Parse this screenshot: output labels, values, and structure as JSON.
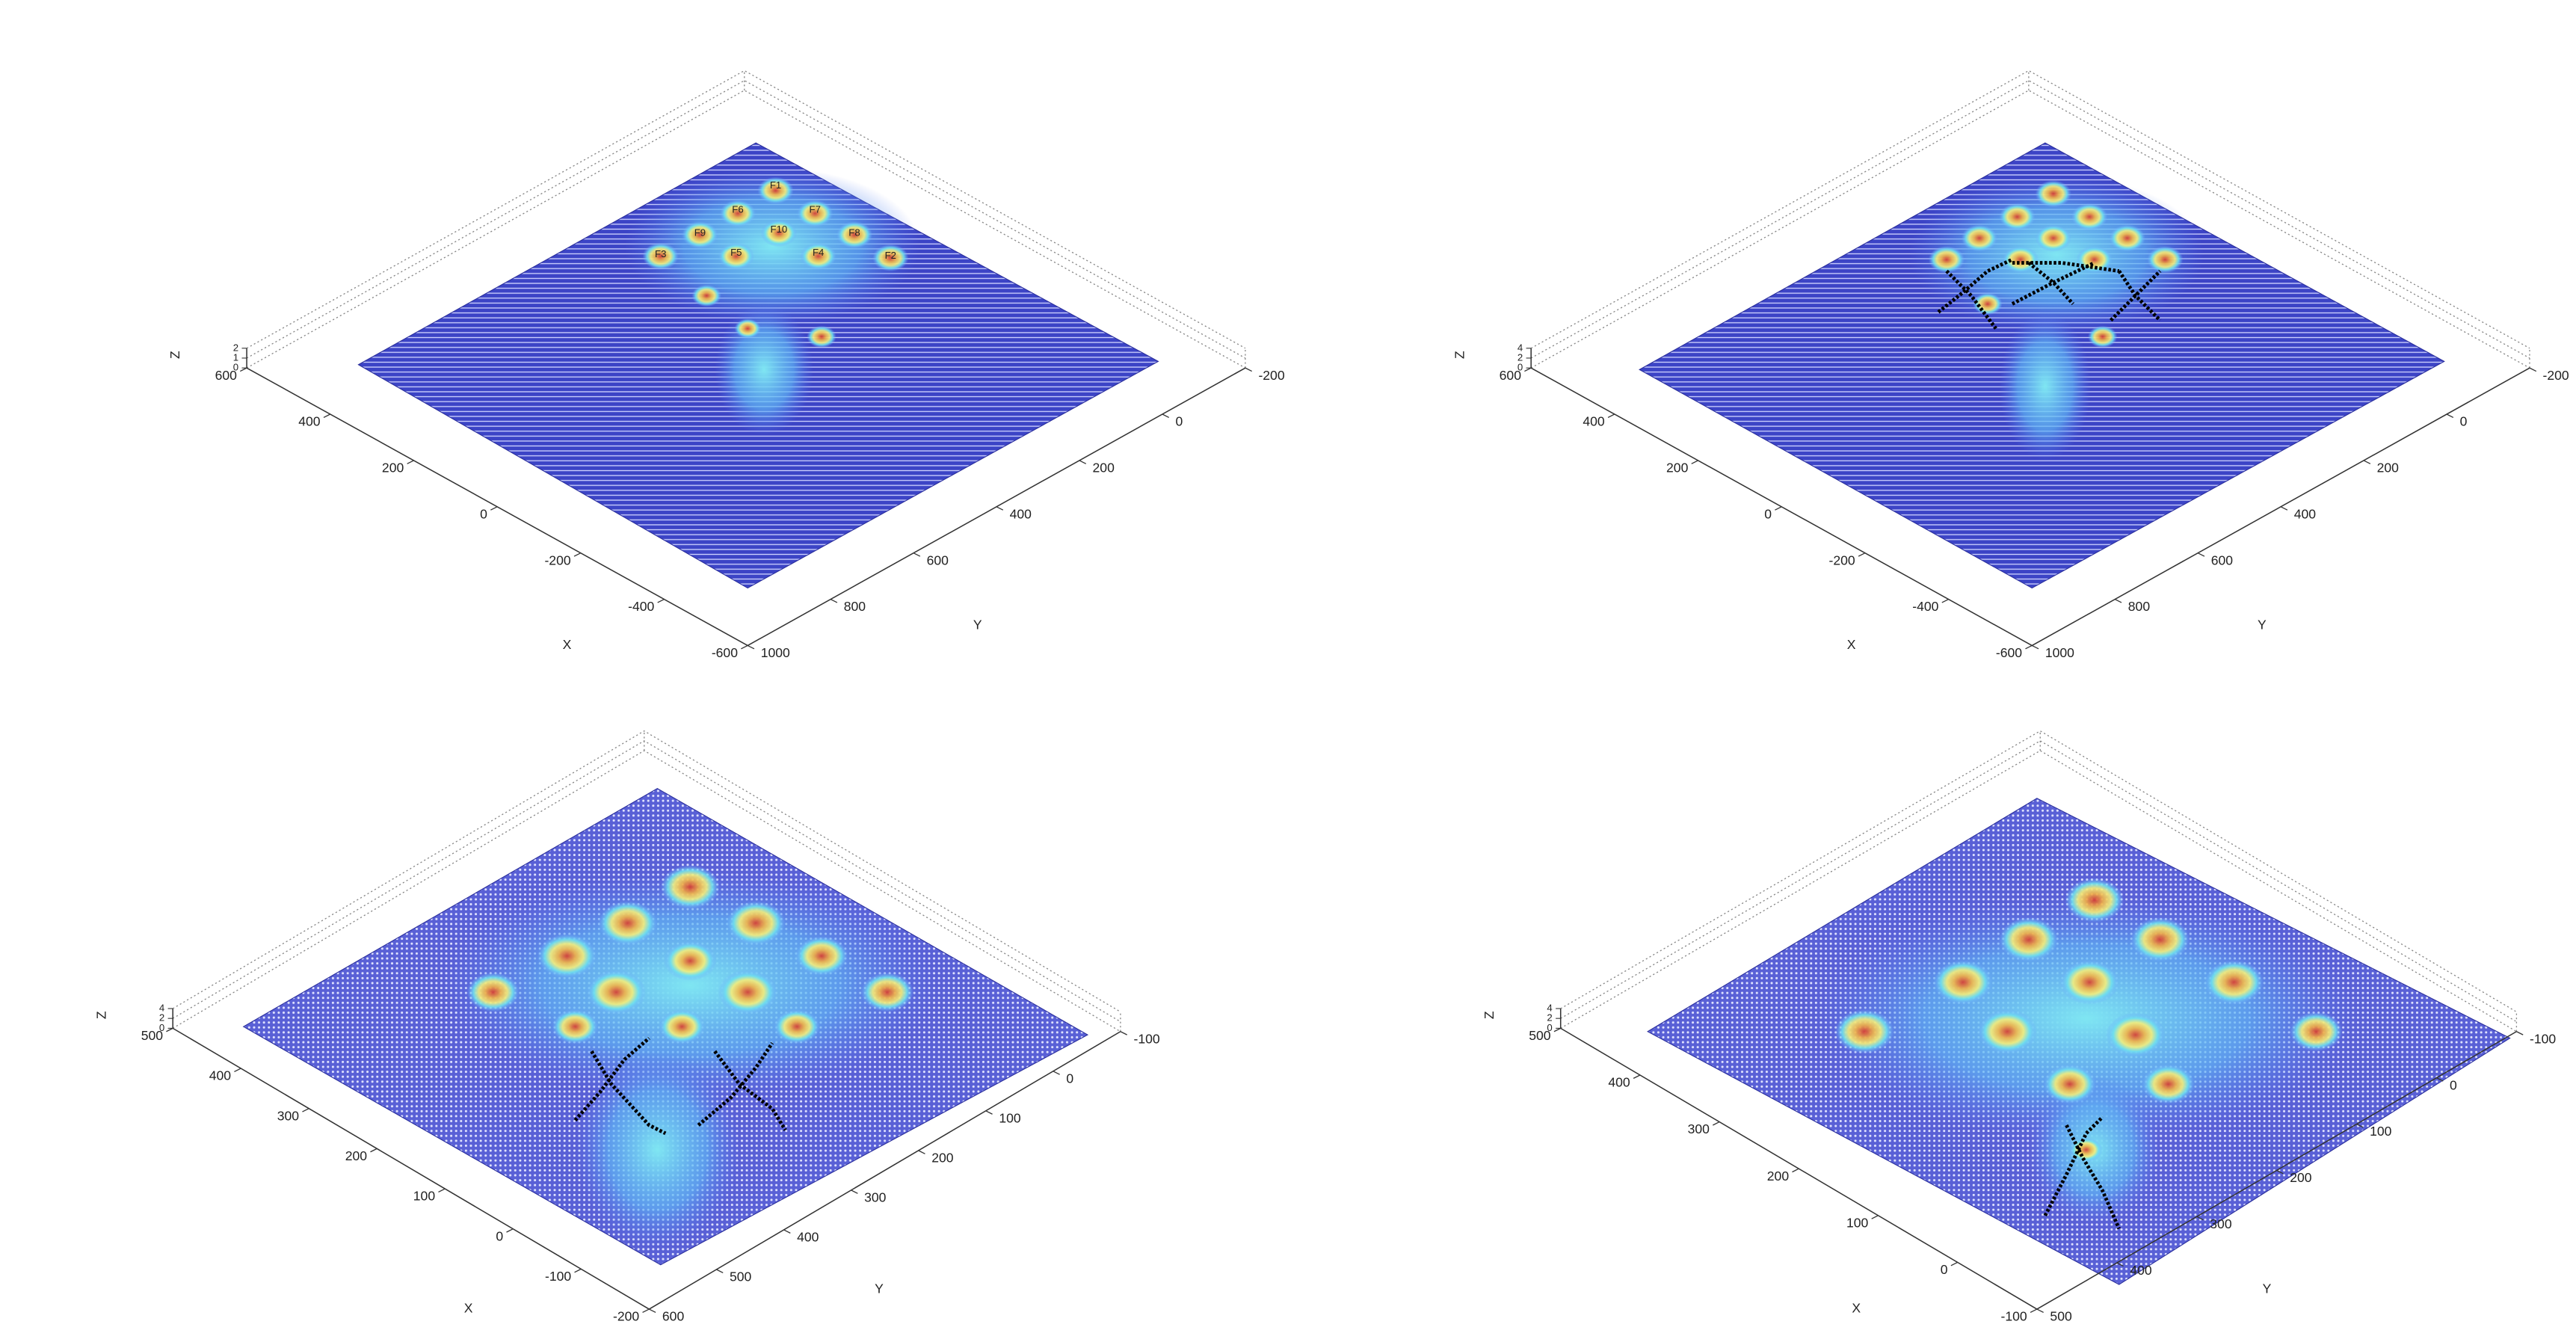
{
  "chart_data": [
    {
      "type": "surface",
      "xlabel": "X",
      "ylabel": "Y",
      "zlabel": "Z",
      "xlim": [
        -600,
        600
      ],
      "xticks": [
        -600,
        -400,
        -200,
        0,
        200,
        400,
        600
      ],
      "ylim": [
        -200,
        1000
      ],
      "yticks": [
        -200,
        0,
        200,
        400,
        600,
        800,
        1000
      ],
      "zlim": [
        0,
        2
      ],
      "zticks": [
        0,
        1,
        2
      ],
      "annotations": [
        "F1",
        "F6",
        "F7",
        "F9",
        "F10",
        "F8",
        "F3",
        "F5",
        "F4",
        "F2"
      ]
    },
    {
      "type": "surface",
      "xlabel": "X",
      "ylabel": "Y",
      "zlabel": "Z",
      "xlim": [
        -600,
        600
      ],
      "xticks": [
        -600,
        -400,
        -200,
        0,
        200,
        400,
        600
      ],
      "ylim": [
        -200,
        1000
      ],
      "yticks": [
        -200,
        0,
        200,
        400,
        600,
        800,
        1000
      ],
      "zlim": [
        0,
        4
      ],
      "zticks": [
        0,
        2,
        4
      ]
    },
    {
      "type": "surface",
      "xlabel": "X",
      "ylabel": "Y",
      "zlabel": "Z",
      "xlim": [
        -200,
        500
      ],
      "xticks": [
        -200,
        -100,
        0,
        100,
        200,
        300,
        400,
        500
      ],
      "ylim": [
        -100,
        600
      ],
      "yticks": [
        -100,
        0,
        100,
        200,
        300,
        400,
        500,
        600
      ],
      "zlim": [
        0,
        4
      ],
      "zticks": [
        0,
        2,
        4
      ]
    },
    {
      "type": "surface",
      "xlabel": "X",
      "ylabel": "Y",
      "zlabel": "Z",
      "xlim": [
        -100,
        500
      ],
      "xticks": [
        -100,
        0,
        100,
        200,
        300,
        400,
        500
      ],
      "ylim": [
        -100,
        500
      ],
      "yticks": [
        -100,
        0,
        100,
        200,
        300,
        400,
        500
      ],
      "zlim": [
        0,
        4
      ],
      "zticks": [
        0,
        2,
        4
      ]
    }
  ]
}
